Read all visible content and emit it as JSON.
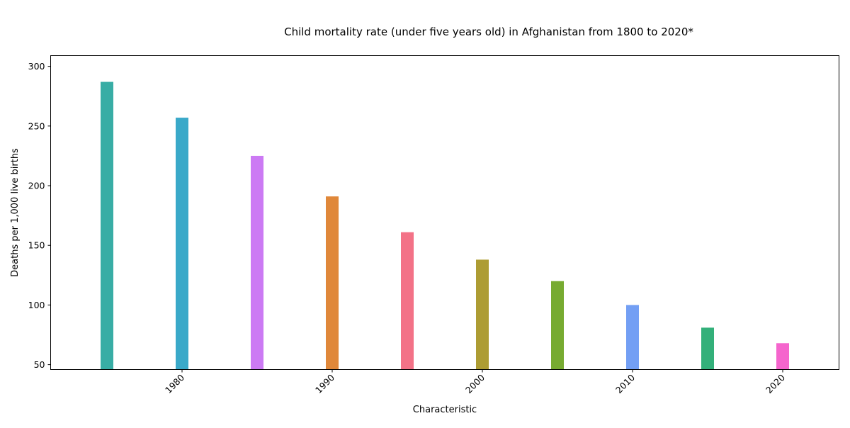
{
  "chart_data": {
    "type": "bar",
    "title": "Child mortality rate (under five years old) in Afghanistan from 1800 to 2020*",
    "xlabel": "Characteristic",
    "ylabel": "Deaths per 1,000 live births",
    "x": [
      1975,
      1980,
      1985,
      1990,
      1995,
      2000,
      2005,
      2010,
      2015,
      2020
    ],
    "values": [
      287,
      257,
      225,
      191,
      161,
      138,
      120,
      100,
      81,
      68
    ],
    "colors": [
      "#38ada5",
      "#3aa9c9",
      "#cc7af4",
      "#e0883a",
      "#f37287",
      "#ad9c33",
      "#77ab31",
      "#739ff4",
      "#33b07a",
      "#f565cd"
    ],
    "x_ticks": [
      1980,
      1990,
      2000,
      2010,
      2020
    ],
    "x_tick_labels": [
      "1980",
      "1990",
      "2000",
      "2010",
      "2020"
    ],
    "y_ticks": [
      50,
      100,
      150,
      200,
      250,
      300
    ],
    "y_tick_labels": [
      "50",
      "100",
      "150",
      "200",
      "250",
      "300"
    ],
    "xlim": [
      1971.25,
      2023.75
    ],
    "ylim": [
      45.9,
      309
    ],
    "grid": false,
    "legend": "none"
  }
}
